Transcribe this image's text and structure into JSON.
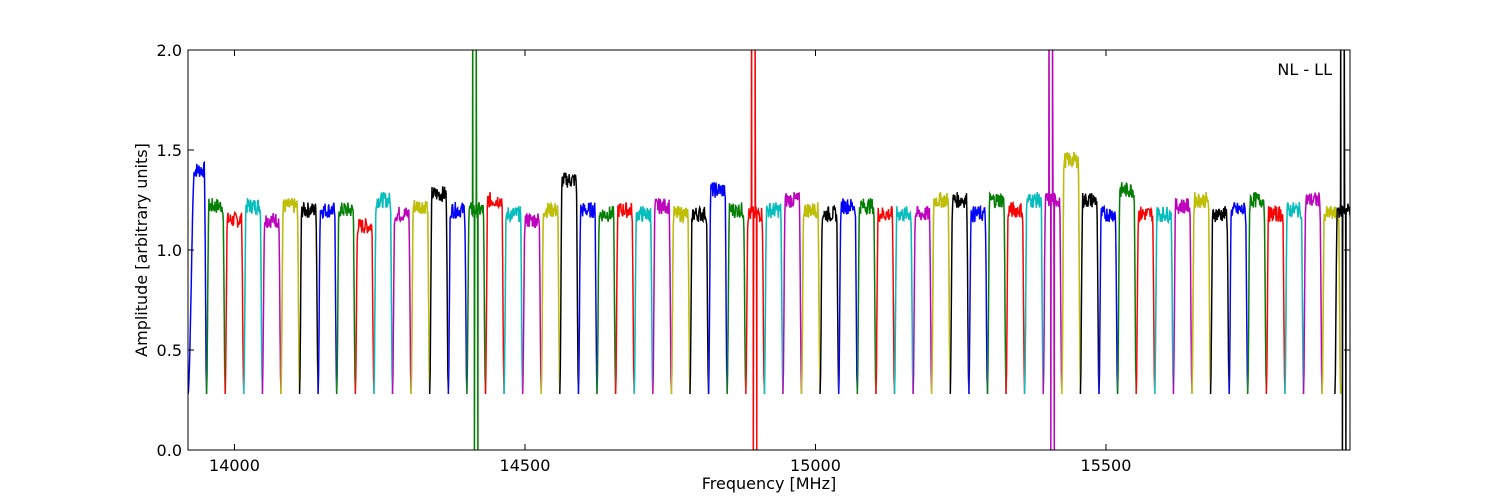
{
  "chart_data": {
    "type": "line",
    "annotation": "NL - LL",
    "xlabel": "Frequency [MHz]",
    "ylabel": "Amplitude [arbitrary units]",
    "xlim": [
      13920,
      15920
    ],
    "ylim": [
      0.0,
      2.0
    ],
    "xticks": [
      14000,
      14500,
      15000,
      15500
    ],
    "xtick_labels": [
      "14000",
      "14500",
      "15000",
      "15500"
    ],
    "yticks": [
      0.0,
      0.5,
      1.0,
      1.5,
      2.0
    ],
    "ytick_labels": [
      "0.0",
      "0.5",
      "1.0",
      "1.5",
      "2.0"
    ],
    "grid": false,
    "legend": "none",
    "channel_width_mhz": 32,
    "color_cycle": [
      "#0000ff",
      "#008000",
      "#ff0000",
      "#00bfbf",
      "#bf00bf",
      "#bfbf00",
      "#000000"
    ],
    "background_trace_color": "#bfbfbf",
    "channels": [
      {
        "center": 13936,
        "level": 1.4,
        "start_phase": "edge"
      },
      {
        "center": 13968,
        "level": 1.22
      },
      {
        "center": 14000,
        "level": 1.15
      },
      {
        "center": 14032,
        "level": 1.22
      },
      {
        "center": 14064,
        "level": 1.15
      },
      {
        "center": 14096,
        "level": 1.22
      },
      {
        "center": 14128,
        "level": 1.2
      },
      {
        "center": 14160,
        "level": 1.2
      },
      {
        "center": 14192,
        "level": 1.2
      },
      {
        "center": 14224,
        "level": 1.12
      },
      {
        "center": 14256,
        "level": 1.25
      },
      {
        "center": 14288,
        "level": 1.18
      },
      {
        "center": 14320,
        "level": 1.22
      },
      {
        "center": 14352,
        "level": 1.28
      },
      {
        "center": 14384,
        "level": 1.2
      },
      {
        "center": 14416,
        "level": 1.2,
        "spike_max": 2.0,
        "spike_min": 0.0
      },
      {
        "center": 14448,
        "level": 1.25
      },
      {
        "center": 14480,
        "level": 1.18
      },
      {
        "center": 14512,
        "level": 1.15
      },
      {
        "center": 14544,
        "level": 1.2
      },
      {
        "center": 14576,
        "level": 1.35
      },
      {
        "center": 14608,
        "level": 1.2
      },
      {
        "center": 14640,
        "level": 1.18
      },
      {
        "center": 14672,
        "level": 1.2
      },
      {
        "center": 14704,
        "level": 1.18
      },
      {
        "center": 14736,
        "level": 1.22
      },
      {
        "center": 14768,
        "level": 1.18
      },
      {
        "center": 14800,
        "level": 1.18
      },
      {
        "center": 14832,
        "level": 1.3
      },
      {
        "center": 14864,
        "level": 1.2
      },
      {
        "center": 14896,
        "level": 1.18,
        "spike_max": 2.0,
        "spike_min": 0.0
      },
      {
        "center": 14928,
        "level": 1.2
      },
      {
        "center": 14960,
        "level": 1.25
      },
      {
        "center": 14992,
        "level": 1.2
      },
      {
        "center": 15024,
        "level": 1.18
      },
      {
        "center": 15056,
        "level": 1.22
      },
      {
        "center": 15088,
        "level": 1.22
      },
      {
        "center": 15120,
        "level": 1.18
      },
      {
        "center": 15152,
        "level": 1.18
      },
      {
        "center": 15184,
        "level": 1.18
      },
      {
        "center": 15216,
        "level": 1.25
      },
      {
        "center": 15248,
        "level": 1.25
      },
      {
        "center": 15280,
        "level": 1.18
      },
      {
        "center": 15312,
        "level": 1.25
      },
      {
        "center": 15344,
        "level": 1.2
      },
      {
        "center": 15376,
        "level": 1.25
      },
      {
        "center": 15408,
        "level": 1.25,
        "spike_max": 2.0,
        "spike_min": 0.0
      },
      {
        "center": 15440,
        "level": 1.45
      },
      {
        "center": 15472,
        "level": 1.25
      },
      {
        "center": 15504,
        "level": 1.18
      },
      {
        "center": 15536,
        "level": 1.3
      },
      {
        "center": 15568,
        "level": 1.18
      },
      {
        "center": 15600,
        "level": 1.18
      },
      {
        "center": 15632,
        "level": 1.22
      },
      {
        "center": 15664,
        "level": 1.25
      },
      {
        "center": 15696,
        "level": 1.18
      },
      {
        "center": 15728,
        "level": 1.2
      },
      {
        "center": 15760,
        "level": 1.25
      },
      {
        "center": 15792,
        "level": 1.18
      },
      {
        "center": 15824,
        "level": 1.2
      },
      {
        "center": 15856,
        "level": 1.25
      },
      {
        "center": 15888,
        "level": 1.18
      },
      {
        "center": 15910,
        "level": 1.2,
        "spike_max": 2.0,
        "spike_min": 0.0
      }
    ]
  }
}
